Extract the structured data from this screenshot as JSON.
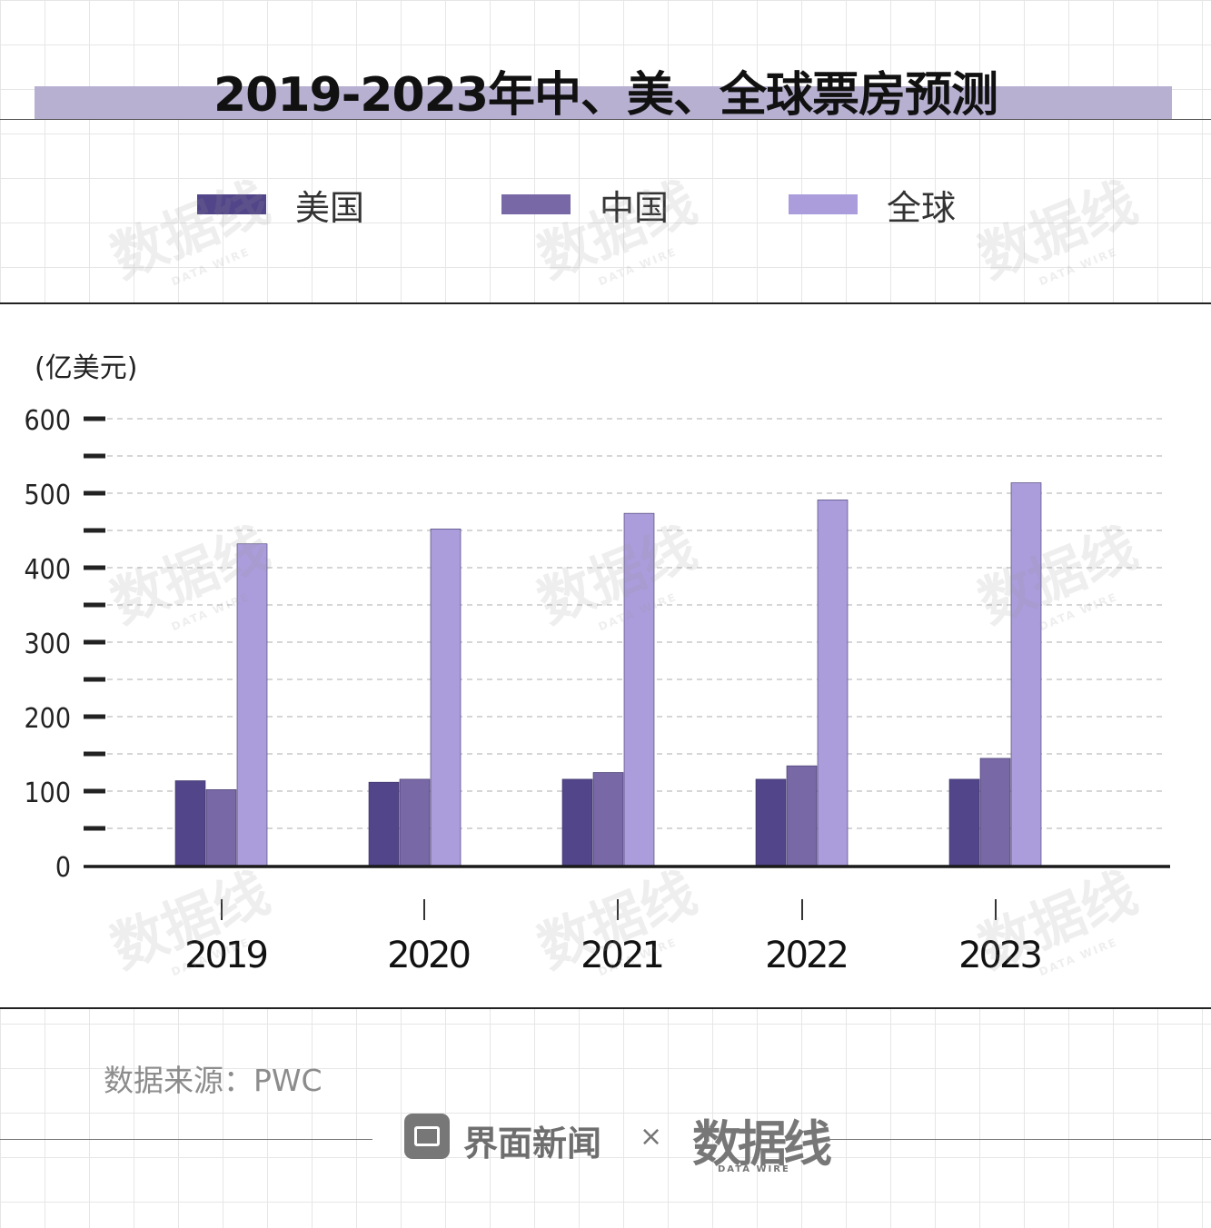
{
  "title": "2019-2023年中、美、全球票房预测",
  "legend": [
    {
      "label": "美国",
      "color": "#524589"
    },
    {
      "label": "中国",
      "color": "#7868a6"
    },
    {
      "label": "全球",
      "color": "#ab9ddc"
    }
  ],
  "chart_data": {
    "type": "bar",
    "unit_label": "(亿美元)",
    "categories": [
      "2019",
      "2020",
      "2021",
      "2022",
      "2023"
    ],
    "series": [
      {
        "name": "美国",
        "values": [
          114,
          112,
          116,
          116,
          116
        ]
      },
      {
        "name": "中国",
        "values": [
          102,
          116,
          125,
          134,
          144
        ]
      },
      {
        "name": "全球",
        "values": [
          432,
          452,
          473,
          491,
          514
        ]
      }
    ],
    "yticks": [
      "0",
      "100",
      "200",
      "300",
      "400",
      "500",
      "600"
    ],
    "ylim": [
      0,
      600
    ],
    "grid": true,
    "legend_position": "top"
  },
  "source": "数据来源：PWC",
  "footer": {
    "brand": "界面新闻",
    "separator": "×",
    "partner": "数据线",
    "partner_sub": "DATA WIRE"
  },
  "watermark_text": "数据线",
  "watermark_sub": "DATA WIRE"
}
